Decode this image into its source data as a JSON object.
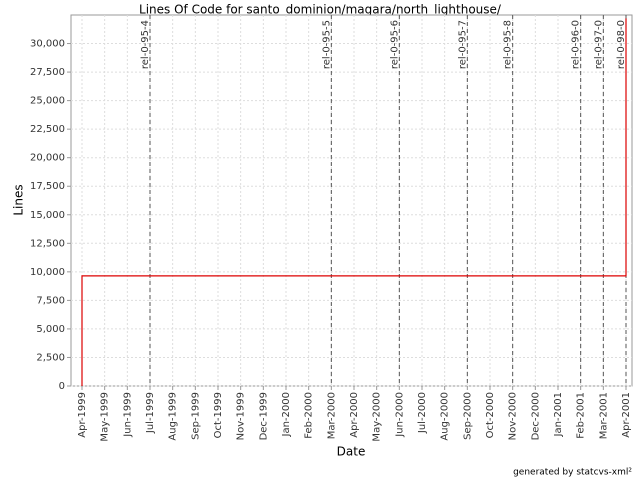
{
  "chart_data": {
    "type": "step-line",
    "title": "Lines Of Code for santo_dominion/magara/north_lighthouse/",
    "x_label": "Date",
    "y_label": "Lines",
    "footer": "generated by statcvs-xml²",
    "grid": true,
    "ylim": [
      0,
      32500
    ],
    "yticks": [
      0,
      {
        "value": 2500,
        "label": "2,500"
      },
      {
        "value": 5000,
        "label": "5,000"
      },
      {
        "value": 7500,
        "label": "7,500"
      },
      {
        "value": 10000,
        "label": "10,000"
      },
      {
        "value": 12500,
        "label": "12,500"
      },
      {
        "value": 15000,
        "label": "15,000"
      },
      {
        "value": 17500,
        "label": "17,500"
      },
      {
        "value": 20000,
        "label": "20,000"
      },
      {
        "value": 22500,
        "label": "22,500"
      },
      {
        "value": 25000,
        "label": "25,000"
      },
      {
        "value": 27500,
        "label": "27,500"
      },
      {
        "value": 30000,
        "label": "30,000"
      }
    ],
    "xticks": [
      {
        "value": "1999-04",
        "label": "Apr-1999"
      },
      {
        "value": "1999-05",
        "label": "May-1999"
      },
      {
        "value": "1999-06",
        "label": "Jun-1999"
      },
      {
        "value": "1999-07",
        "label": "Jul-1999"
      },
      {
        "value": "1999-08",
        "label": "Aug-1999"
      },
      {
        "value": "1999-09",
        "label": "Sep-1999"
      },
      {
        "value": "1999-10",
        "label": "Oct-1999"
      },
      {
        "value": "1999-11",
        "label": "Nov-1999"
      },
      {
        "value": "1999-12",
        "label": "Dec-1999"
      },
      {
        "value": "2000-01",
        "label": "Jan-2000"
      },
      {
        "value": "2000-02",
        "label": "Feb-2000"
      },
      {
        "value": "2000-03",
        "label": "Mar-2000"
      },
      {
        "value": "2000-04",
        "label": "Apr-2000"
      },
      {
        "value": "2000-05",
        "label": "May-2000"
      },
      {
        "value": "2000-06",
        "label": "Jun-2000"
      },
      {
        "value": "2000-07",
        "label": "Jul-2000"
      },
      {
        "value": "2000-08",
        "label": "Aug-2000"
      },
      {
        "value": "2000-09",
        "label": "Sep-2000"
      },
      {
        "value": "2000-10",
        "label": "Oct-2000"
      },
      {
        "value": "2000-11",
        "label": "Nov-2000"
      },
      {
        "value": "2000-12",
        "label": "Dec-2000"
      },
      {
        "value": "2001-01",
        "label": "Jan-2001"
      },
      {
        "value": "2001-02",
        "label": "Feb-2001"
      },
      {
        "value": "2001-03",
        "label": "Mar-2001"
      },
      {
        "value": "2001-04",
        "label": "Apr-2001"
      }
    ],
    "x": [
      "1999-04",
      "1999-04",
      "2001-04",
      "2001-04"
    ],
    "values": [
      0,
      9650,
      9650,
      32200
    ],
    "color": "#dd0000",
    "markers": [
      {
        "label": "rel-0-95-4",
        "x": "1999-07"
      },
      {
        "label": "rel-0-95-5",
        "x": "2000-03"
      },
      {
        "label": "rel-0-95-6",
        "x": "2000-06"
      },
      {
        "label": "rel-0-95-7",
        "x": "2000-09"
      },
      {
        "label": "rel-0-95-8",
        "x": "2000-11"
      },
      {
        "label": "rel-0-96-0",
        "x": "2001-02"
      },
      {
        "label": "rel-0-97-0",
        "x": "2001-03"
      },
      {
        "label": "rel-0-98-0",
        "x": "2001-04"
      }
    ]
  }
}
